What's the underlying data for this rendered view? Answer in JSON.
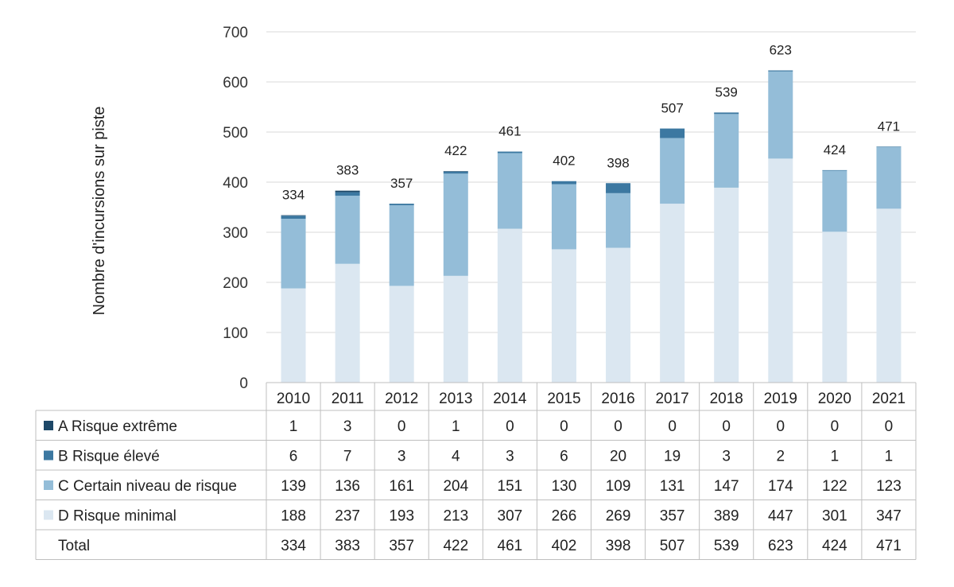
{
  "chart_data": {
    "type": "bar",
    "stacked": true,
    "title": "",
    "xlabel": "",
    "ylabel": "Nombre d'incursions sur piste",
    "ylim": [
      0,
      700
    ],
    "yticks": [
      0,
      100,
      200,
      300,
      400,
      500,
      600,
      700
    ],
    "grid": true,
    "legend_placement": "data table rows",
    "categories": [
      "2010",
      "2011",
      "2012",
      "2013",
      "2014",
      "2015",
      "2016",
      "2017",
      "2018",
      "2019",
      "2020",
      "2021"
    ],
    "series": [
      {
        "name": "D Risque minimal",
        "color": "#dbe7f1",
        "values": [
          188,
          237,
          193,
          213,
          307,
          266,
          269,
          357,
          389,
          447,
          301,
          347
        ]
      },
      {
        "name": "C Certain niveau de risque",
        "color": "#94bdd8",
        "values": [
          139,
          136,
          161,
          204,
          151,
          130,
          109,
          131,
          147,
          174,
          122,
          123
        ]
      },
      {
        "name": "B Risque élevé",
        "color": "#3c78a1",
        "values": [
          6,
          7,
          3,
          4,
          3,
          6,
          20,
          19,
          3,
          2,
          1,
          1
        ]
      },
      {
        "name": "A Risque extrême",
        "color": "#1d4868",
        "values": [
          1,
          3,
          0,
          1,
          0,
          0,
          0,
          0,
          0,
          0,
          0,
          0
        ]
      }
    ],
    "totals_label": "Total",
    "totals": [
      334,
      383,
      357,
      422,
      461,
      402,
      398,
      507,
      539,
      623,
      424,
      471
    ],
    "table_rows_order": [
      "A Risque extrême",
      "B Risque élevé",
      "C Certain niveau de risque",
      "D Risque minimal"
    ]
  }
}
